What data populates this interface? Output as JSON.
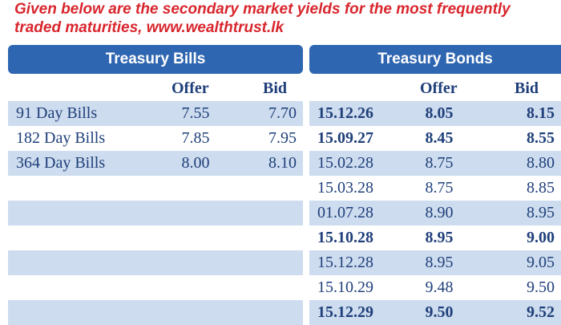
{
  "intro": "Given below are the secondary market yields for the most frequently traded maturities, www.wealthtrust.lk",
  "treasury_bills": {
    "title": "Treasury Bills",
    "offer_label": "Offer",
    "bid_label": "Bid",
    "rows": [
      {
        "name": "91 Day Bills",
        "offer": "7.55",
        "bid": "7.70"
      },
      {
        "name": "182 Day Bills",
        "offer": "7.85",
        "bid": "7.95"
      },
      {
        "name": "364 Day Bills",
        "offer": "8.00",
        "bid": "8.10"
      }
    ]
  },
  "treasury_bonds": {
    "title": "Treasury Bonds",
    "offer_label": "Offer",
    "bid_label": "Bid",
    "rows": [
      {
        "maturity": "15.12.26",
        "offer": "8.05",
        "bid": "8.15",
        "bold": true
      },
      {
        "maturity": "15.09.27",
        "offer": "8.45",
        "bid": "8.55",
        "bold": true
      },
      {
        "maturity": "15.02.28",
        "offer": "8.75",
        "bid": "8.80",
        "bold": false
      },
      {
        "maturity": "15.03.28",
        "offer": "8.75",
        "bid": "8.85",
        "bold": false
      },
      {
        "maturity": "01.07.28",
        "offer": "8.90",
        "bid": "8.95",
        "bold": false
      },
      {
        "maturity": "15.10.28",
        "offer": "8.95",
        "bid": "9.00",
        "bold": true
      },
      {
        "maturity": "15.12.28",
        "offer": "8.95",
        "bid": "9.05",
        "bold": false
      },
      {
        "maturity": "15.10.29",
        "offer": "9.48",
        "bid": "9.50",
        "bold": false
      },
      {
        "maturity": "15.12.29",
        "offer": "9.50",
        "bid": "9.52",
        "bold": true
      }
    ]
  },
  "colors": {
    "header_blue": "#2f66b1",
    "row_shade": "#cddcee",
    "text_navy": "#1f3f7a",
    "intro_red": "#d8262d"
  }
}
